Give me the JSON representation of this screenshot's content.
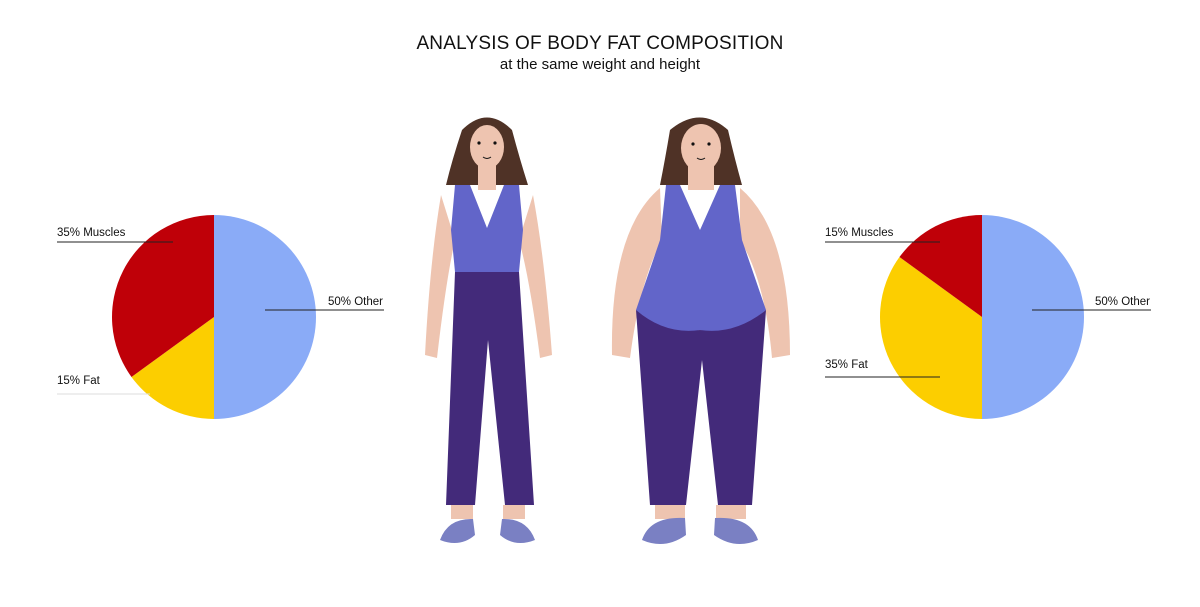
{
  "header": {
    "title": "ANALYSIS OF BODY FAT COMPOSITION",
    "subtitle": "at the same weight and height"
  },
  "colors": {
    "muscles": "#bf0008",
    "fat": "#fcce00",
    "other": "#8aabf7",
    "top": "#6265c9",
    "pants": "#432a7a",
    "skin": "#eec4b0",
    "hair": "#4f3226",
    "shoes": "#7a80c3"
  },
  "chart_data": [
    {
      "type": "pie",
      "title": "",
      "slices": [
        {
          "label": "50% Other",
          "name": "Other",
          "value": 50
        },
        {
          "label": "15% Fat",
          "name": "Fat",
          "value": 15
        },
        {
          "label": "35% Muscles",
          "name": "Muscles",
          "value": 35
        }
      ]
    },
    {
      "type": "pie",
      "title": "",
      "slices": [
        {
          "label": "50% Other",
          "name": "Other",
          "value": 50
        },
        {
          "label": "35% Fat",
          "name": "Fat",
          "value": 35
        },
        {
          "label": "15% Muscles",
          "name": "Muscles",
          "value": 15
        }
      ]
    }
  ]
}
